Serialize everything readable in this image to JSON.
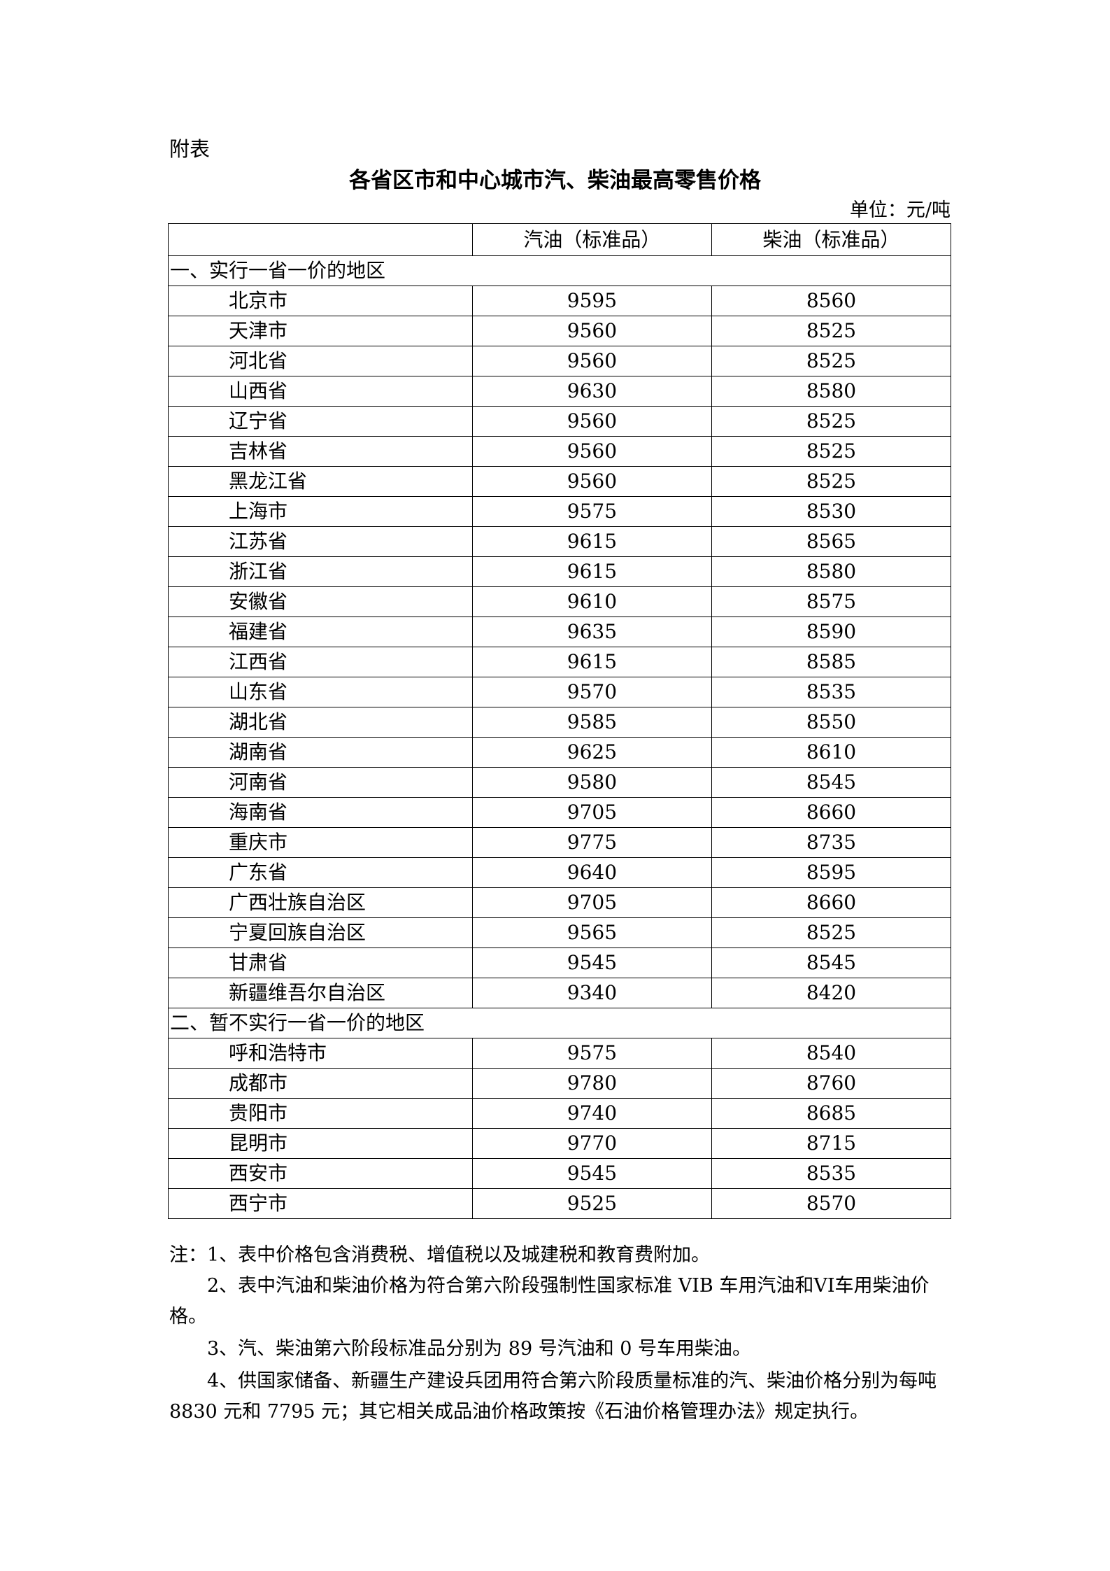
{
  "annex_label": "附表",
  "title": "各省区市和中心城市汽、柴油最高零售价格",
  "unit": "单位：元/吨",
  "table": {
    "headers": [
      "",
      "汽油（标准品）",
      "柴油（标准品）"
    ],
    "sections": [
      {
        "label": "一、实行一省一价的地区",
        "rows": [
          [
            "北京市",
            "9595",
            "8560"
          ],
          [
            "天津市",
            "9560",
            "8525"
          ],
          [
            "河北省",
            "9560",
            "8525"
          ],
          [
            "山西省",
            "9630",
            "8580"
          ],
          [
            "辽宁省",
            "9560",
            "8525"
          ],
          [
            "吉林省",
            "9560",
            "8525"
          ],
          [
            "黑龙江省",
            "9560",
            "8525"
          ],
          [
            "上海市",
            "9575",
            "8530"
          ],
          [
            "江苏省",
            "9615",
            "8565"
          ],
          [
            "浙江省",
            "9615",
            "8580"
          ],
          [
            "安徽省",
            "9610",
            "8575"
          ],
          [
            "福建省",
            "9635",
            "8590"
          ],
          [
            "江西省",
            "9615",
            "8585"
          ],
          [
            "山东省",
            "9570",
            "8535"
          ],
          [
            "湖北省",
            "9585",
            "8550"
          ],
          [
            "湖南省",
            "9625",
            "8610"
          ],
          [
            "河南省",
            "9580",
            "8545"
          ],
          [
            "海南省",
            "9705",
            "8660"
          ],
          [
            "重庆市",
            "9775",
            "8735"
          ],
          [
            "广东省",
            "9640",
            "8595"
          ],
          [
            "广西壮族自治区",
            "9705",
            "8660"
          ],
          [
            "宁夏回族自治区",
            "9565",
            "8525"
          ],
          [
            "甘肃省",
            "9545",
            "8545"
          ],
          [
            "新疆维吾尔自治区",
            "9340",
            "8420"
          ]
        ]
      },
      {
        "label": "二、暂不实行一省一价的地区",
        "rows": [
          [
            "呼和浩特市",
            "9575",
            "8540"
          ],
          [
            "成都市",
            "9780",
            "8760"
          ],
          [
            "贵阳市",
            "9740",
            "8685"
          ],
          [
            "昆明市",
            "9770",
            "8715"
          ],
          [
            "西安市",
            "9545",
            "8535"
          ],
          [
            "西宁市",
            "9525",
            "8570"
          ]
        ]
      }
    ]
  },
  "notes": [
    "注：1、表中价格包含消费税、增值税以及城建税和教育费附加。",
    "2、表中汽油和柴油价格为符合第六阶段强制性国家标准 VIB 车用汽油和VI车用柴油价格。",
    "3、汽、柴油第六阶段标准品分别为 89 号汽油和 0 号车用柴油。",
    "4、供国家储备、新疆生产建设兵团用符合第六阶段质量标准的汽、柴油价格分别为每吨 8830 元和 7795 元；其它相关成品油价格政策按《石油价格管理办法》规定执行。"
  ]
}
